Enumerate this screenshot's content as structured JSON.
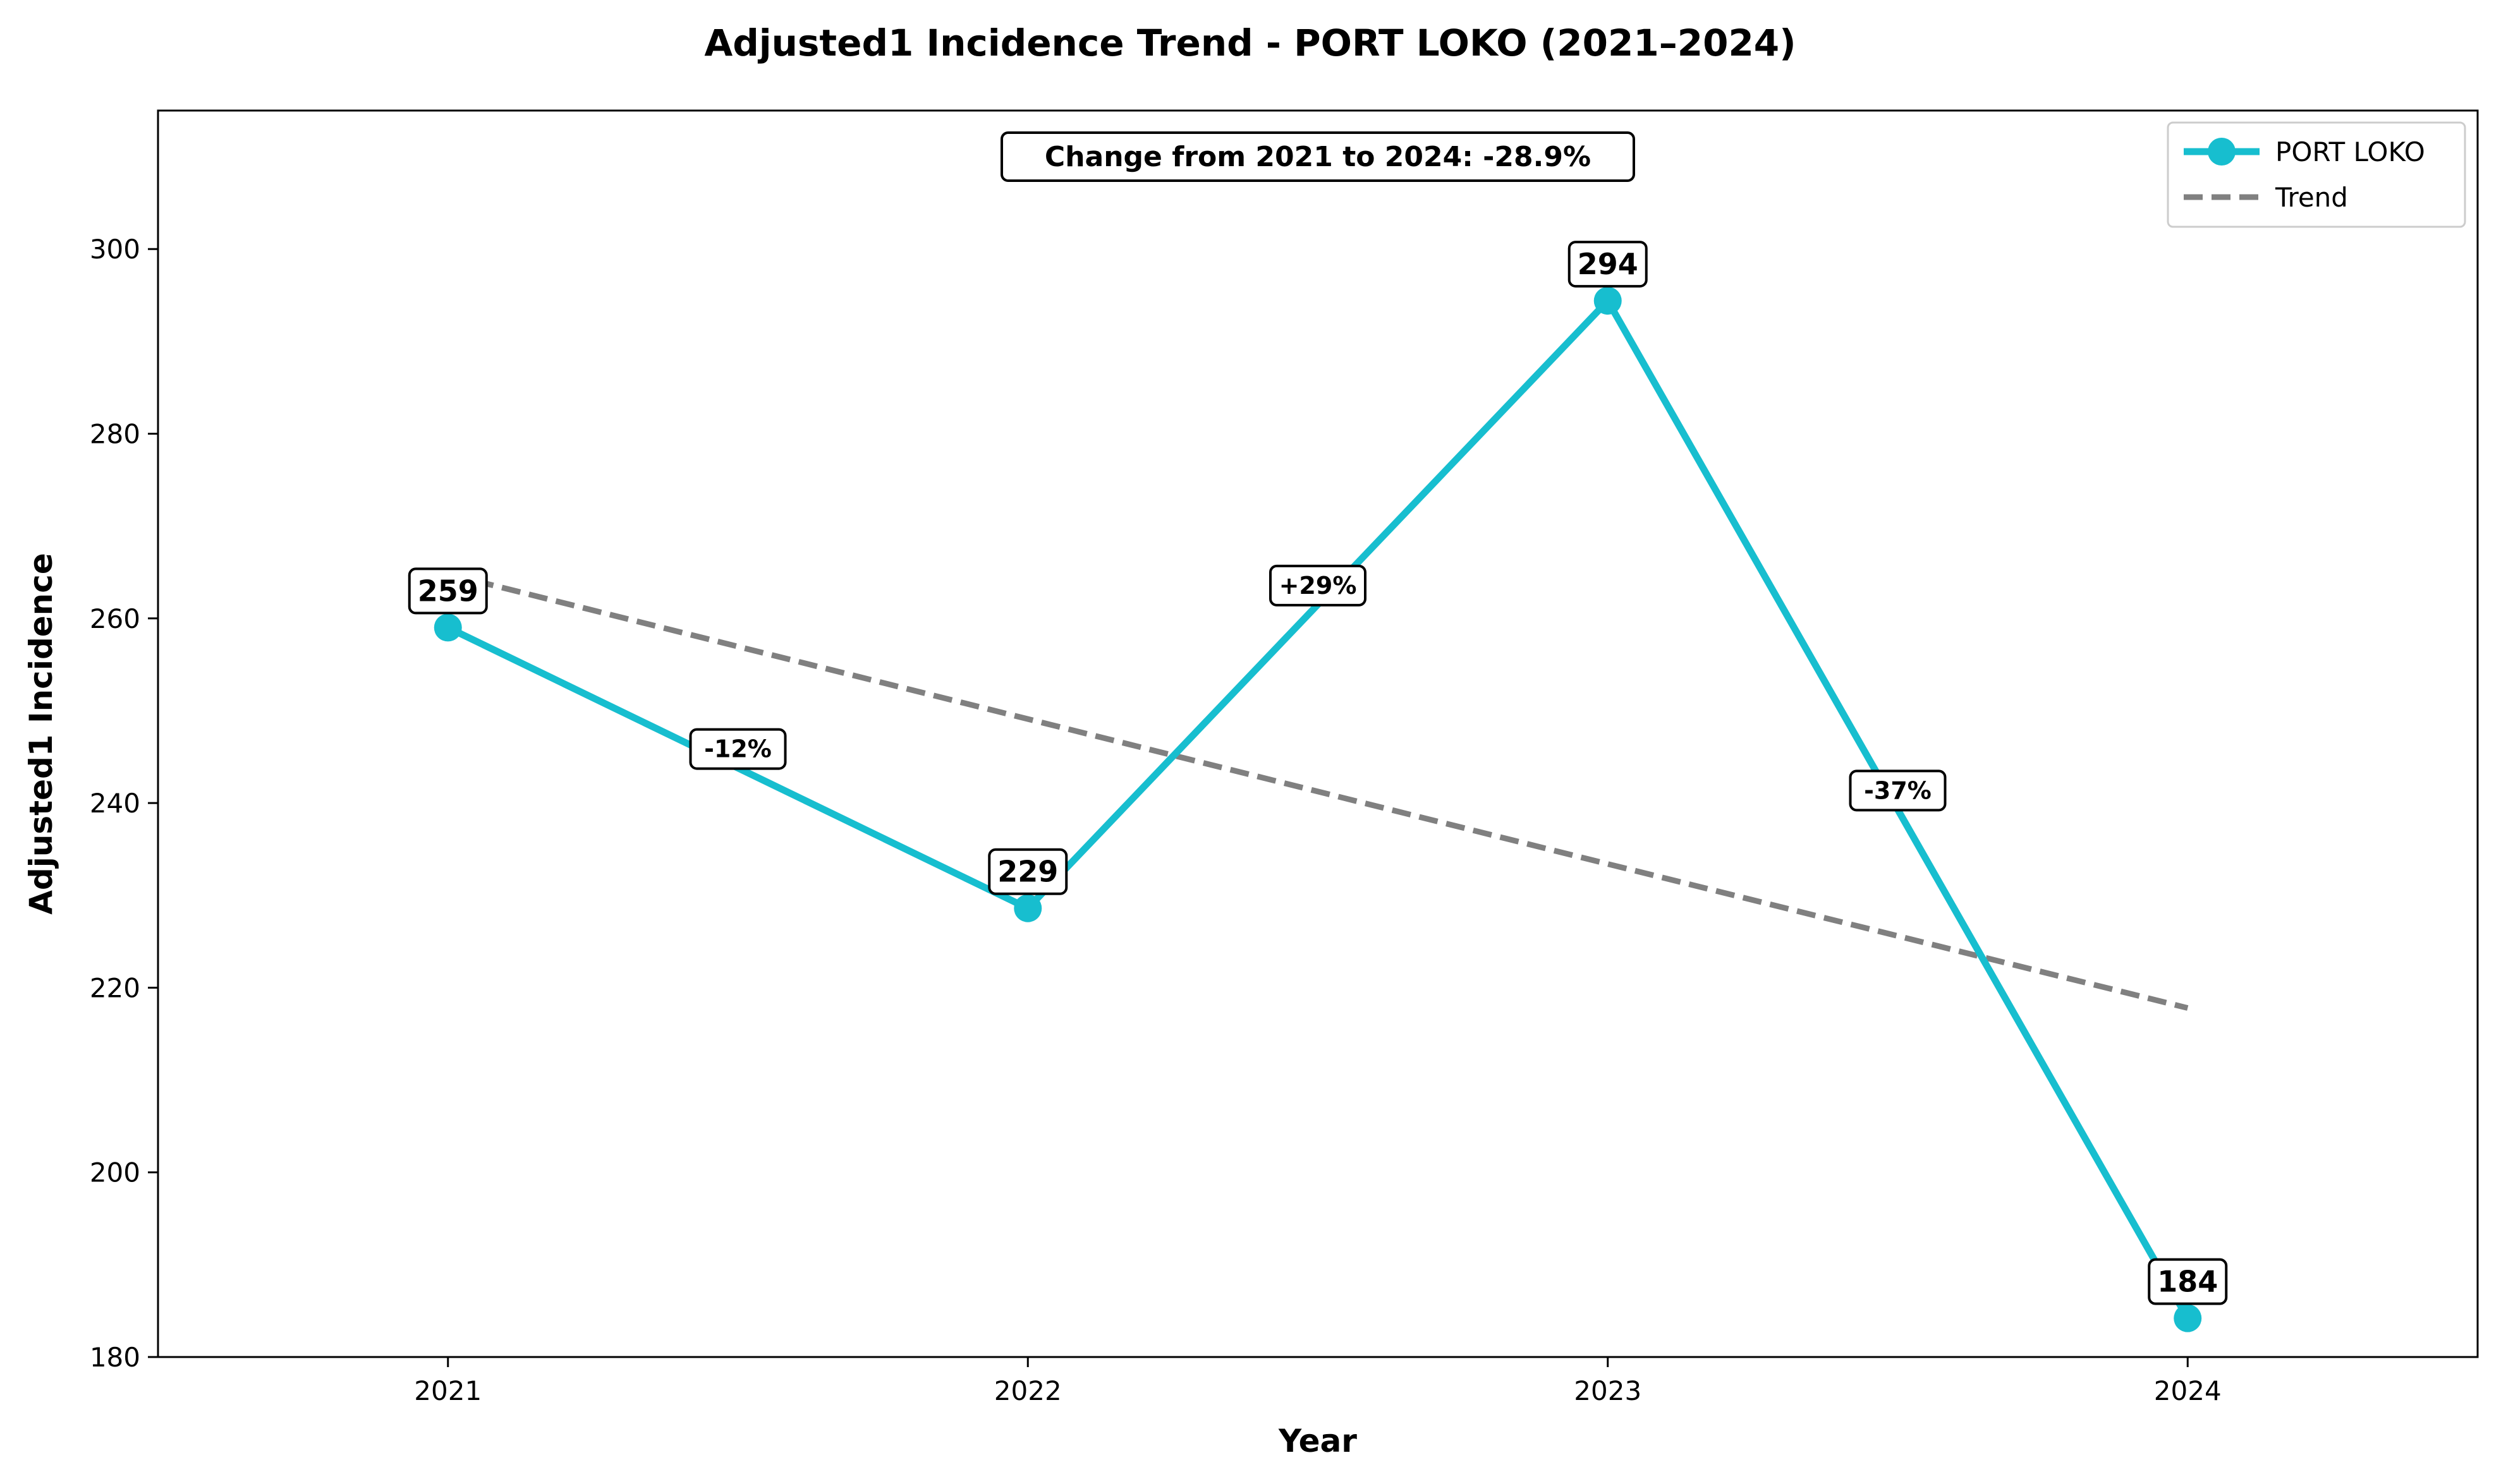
{
  "chart_data": {
    "type": "line",
    "title": "Adjusted1 Incidence Trend - PORT LOKO (2021–2024)",
    "xlabel": "Year",
    "ylabel": "Adjusted1 Incidence",
    "x": [
      "2021",
      "2022",
      "2023",
      "2024"
    ],
    "xlim": [
      2020.5,
      2024.5
    ],
    "ylim": [
      180,
      315
    ],
    "yticks": [
      180,
      200,
      220,
      240,
      260,
      280,
      300
    ],
    "grid": false,
    "legend_position": "top-right",
    "series": [
      {
        "name": "PORT LOKO",
        "values": [
          259.0,
          228.6,
          294.4,
          184.2
        ],
        "point_labels": [
          "259",
          "229",
          "294",
          "184"
        ],
        "color": "#17becf",
        "style": "solid",
        "marker": "circle"
      },
      {
        "name": "Trend",
        "values": [
          264.8,
          249.1,
          233.4,
          217.8
        ],
        "color": "#808080",
        "style": "dashed"
      }
    ],
    "segment_changes": [
      {
        "from": "2021",
        "to": "2022",
        "label": "-12%"
      },
      {
        "from": "2022",
        "to": "2023",
        "label": "+29%"
      },
      {
        "from": "2023",
        "to": "2024",
        "label": "-37%"
      }
    ],
    "annotation": "Change from 2021 to 2024: -28.9%"
  }
}
